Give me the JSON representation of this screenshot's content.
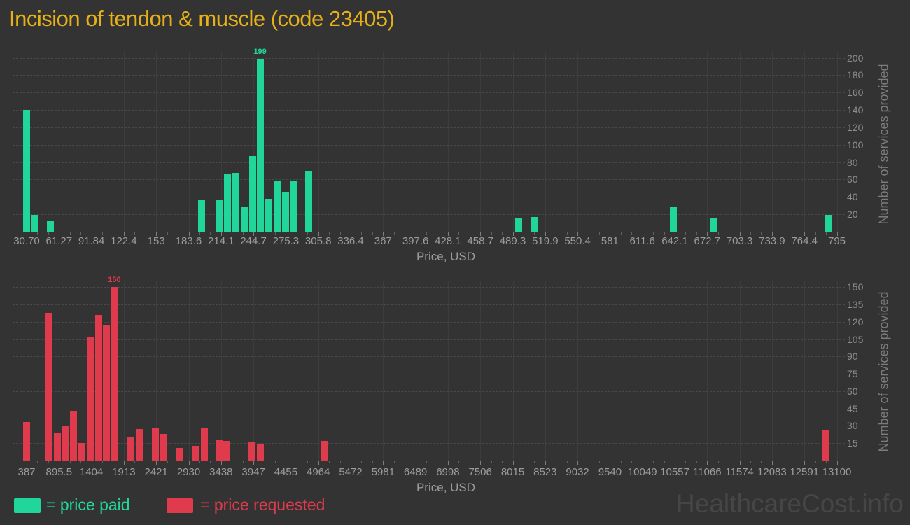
{
  "title": "Incision of tendon & muscle (code 23405)",
  "watermark": "HealthcareCost.info",
  "legend": {
    "paid_label": "= price paid",
    "requested_label": "= price requested"
  },
  "colors": {
    "background": "#333333",
    "paid": "#21D69B",
    "requested": "#E03B4C",
    "title": "#E6B118",
    "tick_label": "#9C9C9C",
    "y_tick_label": "#8C8C8C",
    "axis_title": "#7C7C7C",
    "grid": "#4A4A4A",
    "vgrid": "#3D3D3D",
    "axis_line": "#7E7E7E",
    "watermark": "#464646"
  },
  "chart_data": [
    {
      "type": "bar",
      "series": "price paid",
      "xlabel": "Price, USD",
      "ylabel": "Number of services provided",
      "xlim": [
        30.7,
        795
      ],
      "ylim": [
        0,
        200
      ],
      "grid": "dashed-horizontal",
      "legend_position": "bottom-left",
      "max_bar_label": "199",
      "x_ticks": [
        "30.70",
        "61.27",
        "91.84",
        "122.4",
        "153",
        "183.6",
        "214.1",
        "244.7",
        "275.3",
        "305.8",
        "336.4",
        "367",
        "397.6",
        "428.1",
        "458.7",
        "489.3",
        "519.9",
        "550.4",
        "581",
        "611.6",
        "642.1",
        "672.7",
        "703.3",
        "733.9",
        "764.4",
        "795"
      ],
      "y_ticks": [
        20,
        40,
        60,
        80,
        100,
        120,
        140,
        160,
        180,
        200
      ],
      "bars": [
        {
          "price": 31,
          "count": 140
        },
        {
          "price": 38.7,
          "count": 19
        },
        {
          "price": 53,
          "count": 12
        },
        {
          "price": 196,
          "count": 36
        },
        {
          "price": 212,
          "count": 36
        },
        {
          "price": 220,
          "count": 66
        },
        {
          "price": 228,
          "count": 68
        },
        {
          "price": 236,
          "count": 28
        },
        {
          "price": 244,
          "count": 87
        },
        {
          "price": 251,
          "count": 199
        },
        {
          "price": 259,
          "count": 38
        },
        {
          "price": 267,
          "count": 59
        },
        {
          "price": 275,
          "count": 46
        },
        {
          "price": 283,
          "count": 58
        },
        {
          "price": 297,
          "count": 70
        },
        {
          "price": 495,
          "count": 16
        },
        {
          "price": 510,
          "count": 17
        },
        {
          "price": 641,
          "count": 28
        },
        {
          "price": 679,
          "count": 15
        },
        {
          "price": 787,
          "count": 19
        }
      ]
    },
    {
      "type": "bar",
      "series": "price requested",
      "xlabel": "Price, USD",
      "ylabel": "Number of services provided",
      "xlim": [
        387,
        13100
      ],
      "ylim": [
        0,
        150
      ],
      "grid": "dashed-horizontal",
      "legend_position": "bottom-left",
      "max_bar_label": "150",
      "x_ticks": [
        "387",
        "895.5",
        "1404",
        "1913",
        "2421",
        "2930",
        "3438",
        "3947",
        "4455",
        "4964",
        "5472",
        "5981",
        "6489",
        "6998",
        "7506",
        "8015",
        "8523",
        "9032",
        "9540",
        "10049",
        "10557",
        "11066",
        "11574",
        "12083",
        "12591",
        "13100"
      ],
      "y_ticks": [
        15,
        30,
        45,
        60,
        75,
        90,
        105,
        120,
        135,
        150
      ],
      "bars": [
        {
          "price": 390,
          "count": 33
        },
        {
          "price": 738,
          "count": 128
        },
        {
          "price": 865,
          "count": 24
        },
        {
          "price": 994,
          "count": 30
        },
        {
          "price": 1128,
          "count": 43
        },
        {
          "price": 1257,
          "count": 15
        },
        {
          "price": 1384,
          "count": 107
        },
        {
          "price": 1513,
          "count": 126
        },
        {
          "price": 1641,
          "count": 117
        },
        {
          "price": 1765,
          "count": 150
        },
        {
          "price": 2021,
          "count": 20
        },
        {
          "price": 2150,
          "count": 27
        },
        {
          "price": 2406,
          "count": 28
        },
        {
          "price": 2534,
          "count": 23
        },
        {
          "price": 2789,
          "count": 11
        },
        {
          "price": 3045,
          "count": 13
        },
        {
          "price": 3174,
          "count": 28
        },
        {
          "price": 3405,
          "count": 18
        },
        {
          "price": 3533,
          "count": 17
        },
        {
          "price": 3923,
          "count": 16
        },
        {
          "price": 4052,
          "count": 14
        },
        {
          "price": 5071,
          "count": 17
        },
        {
          "price": 12925,
          "count": 26
        }
      ]
    }
  ]
}
